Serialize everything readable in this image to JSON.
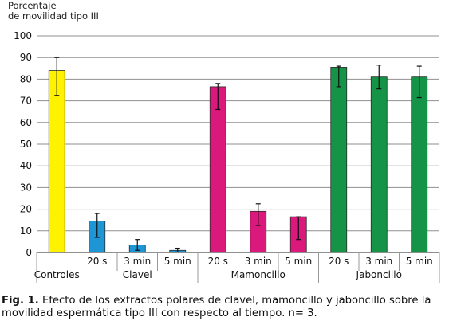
{
  "chart_data": {
    "type": "bar",
    "y_axis_title_lines": [
      "Porcentaje",
      "de movilidad tipo III"
    ],
    "ylim": [
      0,
      100
    ],
    "y_ticks": [
      0,
      10,
      20,
      30,
      40,
      50,
      60,
      70,
      80,
      90,
      100
    ],
    "grid": true,
    "bars": [
      {
        "group": "Controles",
        "sub": "",
        "value": 84,
        "err_low": 72.5,
        "err_high": 90,
        "color": "#fff200"
      },
      {
        "group": "Clavel",
        "sub": "20 s",
        "value": 14.5,
        "err_low": 7,
        "err_high": 18,
        "color": "#1e96d6"
      },
      {
        "group": "Clavel",
        "sub": "3 min",
        "value": 3.5,
        "err_low": 1,
        "err_high": 6,
        "color": "#1e96d6"
      },
      {
        "group": "Clavel",
        "sub": "5 min",
        "value": 1,
        "err_low": 0.2,
        "err_high": 2,
        "color": "#1e96d6"
      },
      {
        "group": "Mamoncillo",
        "sub": "20 s",
        "value": 76.5,
        "err_low": 66,
        "err_high": 78,
        "color": "#db187c"
      },
      {
        "group": "Mamoncillo",
        "sub": "3 min",
        "value": 19,
        "err_low": 12.5,
        "err_high": 22.5,
        "color": "#db187c"
      },
      {
        "group": "Mamoncillo",
        "sub": "5 min",
        "value": 16.5,
        "err_low": 6,
        "err_high": 16.5,
        "color": "#db187c"
      },
      {
        "group": "Jaboncillo",
        "sub": "20 s",
        "value": 85.5,
        "err_low": 76.5,
        "err_high": 86,
        "color": "#159447"
      },
      {
        "group": "Jaboncillo",
        "sub": "3 min",
        "value": 81,
        "err_low": 75.5,
        "err_high": 86.5,
        "color": "#159447"
      },
      {
        "group": "Jaboncillo",
        "sub": "5 min",
        "value": 81,
        "err_low": 71.5,
        "err_high": 86,
        "color": "#159447"
      }
    ],
    "groups": [
      "Controles",
      "Clavel",
      "Mamoncillo",
      "Jaboncillo"
    ]
  },
  "caption": {
    "label": "Fig. 1.",
    "text": " Efecto de los extractos polares de clavel, mamoncillo y jaboncillo sobre la movilidad espermática tipo III con respecto al tiempo. n= 3."
  }
}
